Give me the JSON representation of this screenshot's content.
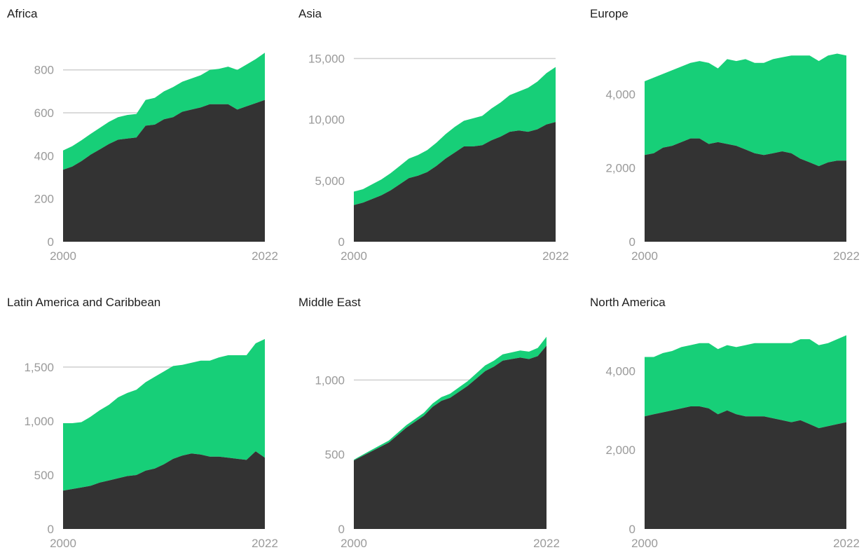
{
  "colors": {
    "green": "#17cf78",
    "dark": "#333333",
    "grid": "#cfcfcf",
    "tick_text": "#9a9a9a",
    "title_text": "#1e1e1e"
  },
  "chart_data": [
    {
      "type": "area",
      "title": "Africa",
      "x": [
        2000,
        2001,
        2002,
        2003,
        2004,
        2005,
        2006,
        2007,
        2008,
        2009,
        2010,
        2011,
        2012,
        2013,
        2014,
        2015,
        2016,
        2017,
        2018,
        2019,
        2020,
        2021,
        2022
      ],
      "x_tick_labels": [
        "2000",
        "2022"
      ],
      "y_ticks": [
        0,
        200,
        400,
        600,
        800
      ],
      "y_tick_labels": [
        "0",
        "200",
        "400",
        "600",
        "800"
      ],
      "ylim": [
        0,
        910
      ],
      "gridlines": [
        600,
        800
      ],
      "series": [
        {
          "values": [
            335,
            350,
            375,
            405,
            430,
            455,
            475,
            480,
            485,
            540,
            545,
            570,
            580,
            605,
            615,
            625,
            640,
            640,
            640,
            615,
            630,
            645,
            660
          ]
        },
        {
          "values": [
            90,
            95,
            97,
            97,
            100,
            103,
            105,
            110,
            110,
            120,
            125,
            130,
            140,
            140,
            145,
            150,
            160,
            165,
            175,
            185,
            195,
            205,
            220
          ]
        }
      ]
    },
    {
      "type": "area",
      "title": "Asia",
      "x": [
        2000,
        2001,
        2002,
        2003,
        2004,
        2005,
        2006,
        2007,
        2008,
        2009,
        2010,
        2011,
        2012,
        2013,
        2014,
        2015,
        2016,
        2017,
        2018,
        2019,
        2020,
        2021,
        2022
      ],
      "x_tick_labels": [
        "2000",
        "2022"
      ],
      "y_ticks": [
        0,
        5000,
        10000,
        15000
      ],
      "y_tick_labels": [
        "0",
        "5,000",
        "10,000",
        "15,000"
      ],
      "ylim": [
        0,
        16000
      ],
      "gridlines": [
        15000
      ],
      "series": [
        {
          "values": [
            3000,
            3200,
            3500,
            3800,
            4200,
            4700,
            5200,
            5400,
            5700,
            6200,
            6800,
            7300,
            7800,
            7800,
            7900,
            8300,
            8600,
            9000,
            9100,
            9000,
            9200,
            9600,
            9800
          ]
        },
        {
          "values": [
            1100,
            1100,
            1200,
            1300,
            1400,
            1500,
            1600,
            1700,
            1800,
            1900,
            2000,
            2100,
            2100,
            2300,
            2400,
            2600,
            2800,
            3000,
            3200,
            3600,
            3900,
            4200,
            4500
          ]
        }
      ]
    },
    {
      "type": "area",
      "title": "Europe",
      "x": [
        2000,
        2001,
        2002,
        2003,
        2004,
        2005,
        2006,
        2007,
        2008,
        2009,
        2010,
        2011,
        2012,
        2013,
        2014,
        2015,
        2016,
        2017,
        2018,
        2019,
        2020,
        2021,
        2022
      ],
      "x_tick_labels": [
        "2000",
        "2022"
      ],
      "y_ticks": [
        0,
        2000,
        4000
      ],
      "y_tick_labels": [
        "0",
        "2,000",
        "4,000"
      ],
      "ylim": [
        0,
        5300
      ],
      "gridlines": [],
      "series": [
        {
          "values": [
            2350,
            2400,
            2550,
            2600,
            2700,
            2800,
            2800,
            2650,
            2700,
            2650,
            2600,
            2500,
            2400,
            2350,
            2400,
            2450,
            2400,
            2250,
            2150,
            2050,
            2150,
            2200,
            2200
          ]
        },
        {
          "values": [
            2000,
            2050,
            2000,
            2050,
            2050,
            2050,
            2100,
            2200,
            2000,
            2300,
            2300,
            2450,
            2450,
            2500,
            2550,
            2550,
            2650,
            2800,
            2900,
            2850,
            2900,
            2900,
            2850
          ]
        }
      ]
    },
    {
      "type": "area",
      "title": "Latin America and Caribbean",
      "x": [
        2000,
        2001,
        2002,
        2003,
        2004,
        2005,
        2006,
        2007,
        2008,
        2009,
        2010,
        2011,
        2012,
        2013,
        2014,
        2015,
        2016,
        2017,
        2018,
        2019,
        2020,
        2021,
        2022
      ],
      "x_tick_labels": [
        "2000",
        "2022"
      ],
      "y_ticks": [
        0,
        500,
        1000,
        1500
      ],
      "y_tick_labels": [
        "0",
        "500",
        "1,000",
        "1,500"
      ],
      "ylim": [
        0,
        1850
      ],
      "gridlines": [
        1500
      ],
      "series": [
        {
          "values": [
            355,
            370,
            385,
            400,
            430,
            450,
            470,
            490,
            500,
            540,
            560,
            600,
            650,
            680,
            700,
            690,
            670,
            670,
            660,
            650,
            640,
            720,
            660
          ]
        },
        {
          "values": [
            625,
            610,
            605,
            640,
            670,
            700,
            750,
            770,
            790,
            820,
            850,
            860,
            860,
            840,
            840,
            870,
            890,
            920,
            950,
            960,
            970,
            1000,
            1100
          ]
        }
      ]
    },
    {
      "type": "area",
      "title": "Middle East",
      "x": [
        2000,
        2001,
        2002,
        2003,
        2004,
        2005,
        2006,
        2007,
        2008,
        2009,
        2010,
        2011,
        2012,
        2013,
        2014,
        2015,
        2016,
        2017,
        2018,
        2019,
        2020,
        2021,
        2022
      ],
      "x_tick_labels": [
        "2000",
        "2022"
      ],
      "y_ticks": [
        0,
        500,
        1000
      ],
      "y_tick_labels": [
        "0",
        "500",
        "1,000"
      ],
      "ylim": [
        0,
        1340
      ],
      "gridlines": [
        1000
      ],
      "series": [
        {
          "values": [
            460,
            490,
            520,
            550,
            580,
            630,
            680,
            720,
            760,
            820,
            860,
            880,
            920,
            960,
            1010,
            1060,
            1090,
            1130,
            1140,
            1150,
            1140,
            1160,
            1230
          ]
        },
        {
          "values": [
            5,
            8,
            10,
            12,
            14,
            15,
            17,
            18,
            20,
            22,
            25,
            28,
            30,
            32,
            35,
            38,
            40,
            42,
            45,
            48,
            50,
            55,
            60
          ]
        }
      ]
    },
    {
      "type": "area",
      "title": "North America",
      "x": [
        2000,
        2001,
        2002,
        2003,
        2004,
        2005,
        2006,
        2007,
        2008,
        2009,
        2010,
        2011,
        2012,
        2013,
        2014,
        2015,
        2016,
        2017,
        2018,
        2019,
        2020,
        2021,
        2022
      ],
      "x_tick_labels": [
        "2000",
        "2022"
      ],
      "y_ticks": [
        0,
        2000,
        4000
      ],
      "y_tick_labels": [
        "0",
        "2,000",
        "4,000"
      ],
      "ylim": [
        0,
        5050
      ],
      "gridlines": [],
      "series": [
        {
          "values": [
            2850,
            2900,
            2950,
            3000,
            3050,
            3100,
            3100,
            3050,
            2900,
            3000,
            2900,
            2850,
            2850,
            2850,
            2800,
            2750,
            2700,
            2750,
            2650,
            2550,
            2600,
            2650,
            2700
          ]
        },
        {
          "values": [
            1500,
            1450,
            1500,
            1500,
            1550,
            1550,
            1600,
            1650,
            1650,
            1650,
            1700,
            1800,
            1850,
            1850,
            1900,
            1950,
            2000,
            2050,
            2150,
            2100,
            2100,
            2150,
            2200
          ]
        }
      ]
    }
  ]
}
